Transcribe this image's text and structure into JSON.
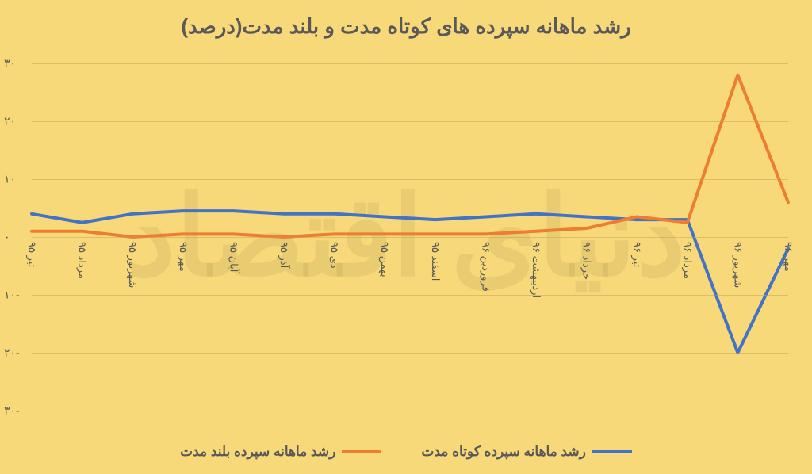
{
  "chart": {
    "type": "line",
    "title": "رشد ماهانه سپرده های کوتاه مدت و بلند مدت(درصد)",
    "title_fontsize": 26,
    "title_color": "#595959",
    "background_color": "#f8d979",
    "grid_color": "#bfa25a",
    "text_color": "#595959",
    "ylim": [
      -30,
      30
    ],
    "ytick_step": 10,
    "yticks": [
      -30,
      -20,
      -10,
      0,
      10,
      20,
      30
    ],
    "ytick_labels": [
      "۳۰-",
      "۲۰-",
      "۱۰-",
      "۰",
      "۱۰",
      "۲۰",
      "۳۰"
    ],
    "categories": [
      "تیر ۹۵",
      "مرداد ۹۵",
      "شهریور ۹۵",
      "مهر ۹۵",
      "آبان ۹۵",
      "آذر ۹۵",
      "دی ۹۵",
      "بهمن ۹۵",
      "اسفند ۹۵",
      "فروردین ۹۶",
      "اردیبهشت ۹۶",
      "خرداد ۹۶",
      "تیر ۹۶",
      "مرداد ۹۶",
      "شهریور ۹۶",
      "مهر ۹۶"
    ],
    "line_width": 4,
    "series": [
      {
        "name": "short_term",
        "label": "رشد ماهانه سپرده کوتاه مدت",
        "color": "#4472c4",
        "values": [
          4,
          2.5,
          4,
          4.5,
          4.5,
          4,
          4,
          3.5,
          3,
          3.5,
          4,
          3.5,
          3,
          3,
          -20,
          -2
        ]
      },
      {
        "name": "long_term",
        "label": "رشد ماهانه سپرده بلند مدت",
        "color": "#ed7d31",
        "values": [
          1,
          1,
          0,
          0.5,
          0.5,
          0,
          0.5,
          0.5,
          0.5,
          0.5,
          1,
          1.5,
          3.5,
          2.5,
          28,
          6
        ]
      }
    ],
    "watermark_text": "دنیای اقتصاد"
  }
}
